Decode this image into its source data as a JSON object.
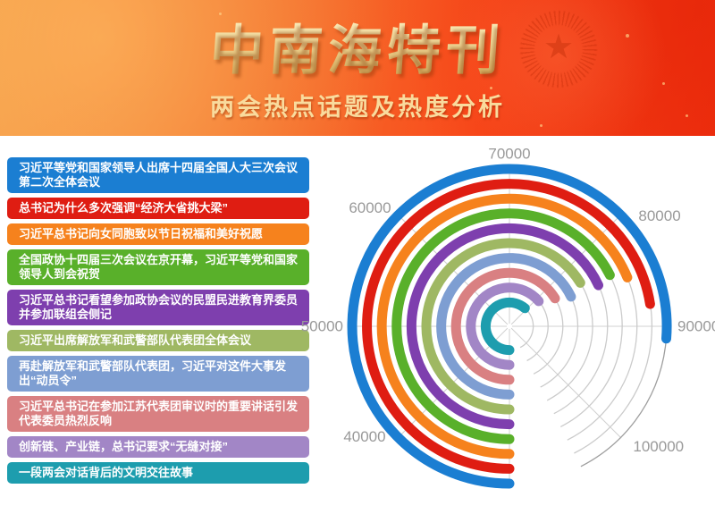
{
  "header": {
    "title": "中南海特刊",
    "subtitle": "两会热点话题及热度分析",
    "emblem": "star-seal-watermark",
    "colors": {
      "bg_orange": "#f59b46",
      "bg_red": "#f03210",
      "title_gold": "#ecd08c",
      "subtitle_gold": "#f9db9d"
    }
  },
  "topics": [
    {
      "label": "习近平等党和国家领导人出席十四届全国人大三次会议第二次全体会议",
      "value": 91000,
      "color": "#1b7ed2"
    },
    {
      "label": "总书记为什么多次强调“经济大省挑大梁”",
      "value": 88000,
      "color": "#df1d12"
    },
    {
      "label": "习近平总书记向女同胞致以节日祝福和美好祝愿",
      "value": 85000,
      "color": "#f6821d"
    },
    {
      "label": "全国政协十四届三次会议在京开幕，习近平等党和国家领导人到会祝贺",
      "value": 84000,
      "color": "#59b02a"
    },
    {
      "label": "习近平总书记看望参加政协会议的民盟民进教育界委员并参加联组会侧记",
      "value": 84500,
      "color": "#7e3fae"
    },
    {
      "label": "习近平出席解放军和武警部队代表团全体会议",
      "value": 83000,
      "color": "#9fb863"
    },
    {
      "label": "再赴解放军和武警部队代表团，习近平对这件大事发出“动员令”",
      "value": 84300,
      "color": "#7e9ed2"
    },
    {
      "label": "习近平总书记在参加江苏代表团审议时的重要讲话引发代表委员热烈反响",
      "value": 83000,
      "color": "#d98082"
    },
    {
      "label": "创新链、产业链，总书记要求“无缝对接”",
      "value": 81000,
      "color": "#a286c6"
    },
    {
      "label": "一段两会对话背后的文明交往故事",
      "value": 79000,
      "color": "#1d9dae"
    }
  ],
  "chart_data": {
    "type": "bar",
    "coordinate": "polar",
    "title": "两会热点话题及热度分析",
    "categories": [
      "习近平等党和国家领导人出席十四届全国人大三次会议第二次全体会议",
      "总书记为什么多次强调“经济大省挑大梁”",
      "习近平总书记向女同胞致以节日祝福和美好祝愿",
      "全国政协十四届三次会议在京开幕，习近平等党和国家领导人到会祝贺",
      "习近平总书记看望参加政协会议的民盟民进教育界委员并参加联组会侧记",
      "习近平出席解放军和武警部队代表团全体会议",
      "再赴解放军和武警部队代表团，习近平对这件大事发出“动员令”",
      "习近平总书记在参加江苏代表团审议时的重要讲话引发代表委员热烈反响",
      "创新链、产业链，总书记要求“无缝对接”",
      "一段两会对话背后的文明交往故事"
    ],
    "values": [
      91000,
      88000,
      85000,
      84000,
      84500,
      83000,
      84300,
      83000,
      81000,
      79000
    ],
    "colors": [
      "#1b7ed2",
      "#df1d12",
      "#f6821d",
      "#59b02a",
      "#7e3fae",
      "#9fb863",
      "#7e9ed2",
      "#d98082",
      "#a286c6",
      "#1d9dae"
    ],
    "angle_axis": {
      "min": 30000,
      "max": 104000,
      "start_angle_deg": 180,
      "clockwise": true,
      "deg_per_unit": 0.0045,
      "labels": [
        {
          "text": "40000",
          "angle": 225
        },
        {
          "text": "50000",
          "angle": 270
        },
        {
          "text": "60000",
          "angle": 315
        },
        {
          "text": "70000",
          "angle": 0
        },
        {
          "text": "80000",
          "angle": 45
        },
        {
          "text": "90000",
          "angle": 90
        },
        {
          "text": "100000",
          "angle": 135
        }
      ],
      "spoke_angles_deg": [
        0,
        45,
        90,
        135,
        180,
        225,
        270,
        315
      ]
    },
    "grid": {
      "track_color": "#cbcbcb",
      "outer_track_color": "#9e9e9e",
      "spoke_color": "#d0d0d0",
      "label_color": "#999999"
    }
  }
}
